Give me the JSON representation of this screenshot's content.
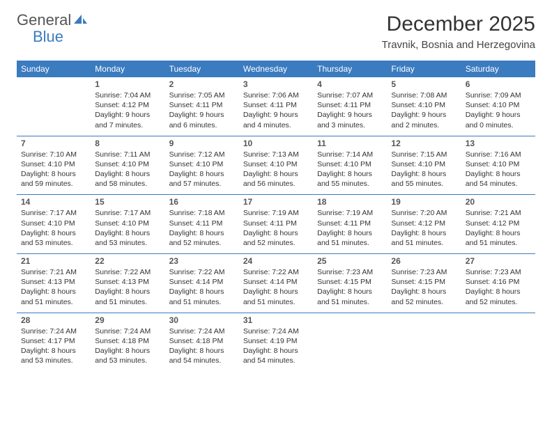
{
  "logo": {
    "text_general": "General",
    "text_blue": "Blue"
  },
  "header": {
    "month_title": "December 2025",
    "location": "Travnik, Bosnia and Herzegovina"
  },
  "colors": {
    "header_row_bg": "#3b7bbf",
    "header_row_text": "#ffffff",
    "row_divider": "#3b7bbf",
    "daynum": "#555555",
    "body_text": "#333333"
  },
  "weekdays": [
    "Sunday",
    "Monday",
    "Tuesday",
    "Wednesday",
    "Thursday",
    "Friday",
    "Saturday"
  ],
  "layout": {
    "first_weekday_index": 1,
    "days_in_month": 31,
    "rows": 5,
    "cols": 7
  },
  "days": [
    {
      "n": 1,
      "sunrise": "7:04 AM",
      "sunset": "4:12 PM",
      "daylight": "9 hours and 7 minutes."
    },
    {
      "n": 2,
      "sunrise": "7:05 AM",
      "sunset": "4:11 PM",
      "daylight": "9 hours and 6 minutes."
    },
    {
      "n": 3,
      "sunrise": "7:06 AM",
      "sunset": "4:11 PM",
      "daylight": "9 hours and 4 minutes."
    },
    {
      "n": 4,
      "sunrise": "7:07 AM",
      "sunset": "4:11 PM",
      "daylight": "9 hours and 3 minutes."
    },
    {
      "n": 5,
      "sunrise": "7:08 AM",
      "sunset": "4:10 PM",
      "daylight": "9 hours and 2 minutes."
    },
    {
      "n": 6,
      "sunrise": "7:09 AM",
      "sunset": "4:10 PM",
      "daylight": "9 hours and 0 minutes."
    },
    {
      "n": 7,
      "sunrise": "7:10 AM",
      "sunset": "4:10 PM",
      "daylight": "8 hours and 59 minutes."
    },
    {
      "n": 8,
      "sunrise": "7:11 AM",
      "sunset": "4:10 PM",
      "daylight": "8 hours and 58 minutes."
    },
    {
      "n": 9,
      "sunrise": "7:12 AM",
      "sunset": "4:10 PM",
      "daylight": "8 hours and 57 minutes."
    },
    {
      "n": 10,
      "sunrise": "7:13 AM",
      "sunset": "4:10 PM",
      "daylight": "8 hours and 56 minutes."
    },
    {
      "n": 11,
      "sunrise": "7:14 AM",
      "sunset": "4:10 PM",
      "daylight": "8 hours and 55 minutes."
    },
    {
      "n": 12,
      "sunrise": "7:15 AM",
      "sunset": "4:10 PM",
      "daylight": "8 hours and 55 minutes."
    },
    {
      "n": 13,
      "sunrise": "7:16 AM",
      "sunset": "4:10 PM",
      "daylight": "8 hours and 54 minutes."
    },
    {
      "n": 14,
      "sunrise": "7:17 AM",
      "sunset": "4:10 PM",
      "daylight": "8 hours and 53 minutes."
    },
    {
      "n": 15,
      "sunrise": "7:17 AM",
      "sunset": "4:10 PM",
      "daylight": "8 hours and 53 minutes."
    },
    {
      "n": 16,
      "sunrise": "7:18 AM",
      "sunset": "4:11 PM",
      "daylight": "8 hours and 52 minutes."
    },
    {
      "n": 17,
      "sunrise": "7:19 AM",
      "sunset": "4:11 PM",
      "daylight": "8 hours and 52 minutes."
    },
    {
      "n": 18,
      "sunrise": "7:19 AM",
      "sunset": "4:11 PM",
      "daylight": "8 hours and 51 minutes."
    },
    {
      "n": 19,
      "sunrise": "7:20 AM",
      "sunset": "4:12 PM",
      "daylight": "8 hours and 51 minutes."
    },
    {
      "n": 20,
      "sunrise": "7:21 AM",
      "sunset": "4:12 PM",
      "daylight": "8 hours and 51 minutes."
    },
    {
      "n": 21,
      "sunrise": "7:21 AM",
      "sunset": "4:13 PM",
      "daylight": "8 hours and 51 minutes."
    },
    {
      "n": 22,
      "sunrise": "7:22 AM",
      "sunset": "4:13 PM",
      "daylight": "8 hours and 51 minutes."
    },
    {
      "n": 23,
      "sunrise": "7:22 AM",
      "sunset": "4:14 PM",
      "daylight": "8 hours and 51 minutes."
    },
    {
      "n": 24,
      "sunrise": "7:22 AM",
      "sunset": "4:14 PM",
      "daylight": "8 hours and 51 minutes."
    },
    {
      "n": 25,
      "sunrise": "7:23 AM",
      "sunset": "4:15 PM",
      "daylight": "8 hours and 51 minutes."
    },
    {
      "n": 26,
      "sunrise": "7:23 AM",
      "sunset": "4:15 PM",
      "daylight": "8 hours and 52 minutes."
    },
    {
      "n": 27,
      "sunrise": "7:23 AM",
      "sunset": "4:16 PM",
      "daylight": "8 hours and 52 minutes."
    },
    {
      "n": 28,
      "sunrise": "7:24 AM",
      "sunset": "4:17 PM",
      "daylight": "8 hours and 53 minutes."
    },
    {
      "n": 29,
      "sunrise": "7:24 AM",
      "sunset": "4:18 PM",
      "daylight": "8 hours and 53 minutes."
    },
    {
      "n": 30,
      "sunrise": "7:24 AM",
      "sunset": "4:18 PM",
      "daylight": "8 hours and 54 minutes."
    },
    {
      "n": 31,
      "sunrise": "7:24 AM",
      "sunset": "4:19 PM",
      "daylight": "8 hours and 54 minutes."
    }
  ],
  "labels": {
    "sunrise": "Sunrise: ",
    "sunset": "Sunset: ",
    "daylight": "Daylight: "
  }
}
